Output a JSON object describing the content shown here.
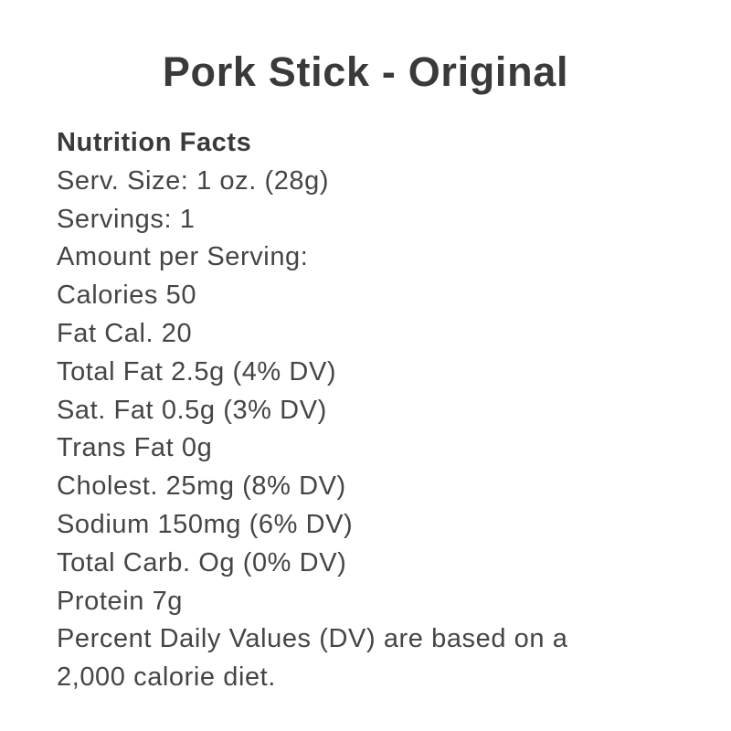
{
  "theme": {
    "title_color": "#3a3a3a",
    "body_text_color": "#454545",
    "background_color": "#ffffff"
  },
  "product": {
    "title": "Pork Stick - Original"
  },
  "nutrition": {
    "heading": "Nutrition Facts",
    "rows": [
      "Serv. Size: 1 oz. (28g)",
      "Servings: 1",
      "Amount per Serving:",
      "Calories 50",
      "Fat Cal. 20",
      "Total Fat 2.5g (4% DV)",
      "Sat. Fat 0.5g (3% DV)",
      "Trans Fat 0g",
      "Cholest. 25mg (8% DV)",
      "Sodium 150mg (6% DV)",
      "Total Carb. Og (0% DV)",
      "Protein 7g"
    ],
    "footnote": "Percent Daily Values (DV) are based on a 2,000 calorie diet."
  }
}
